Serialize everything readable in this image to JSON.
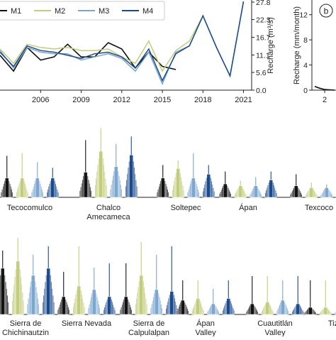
{
  "chart_data": [
    {
      "type": "line",
      "title": "",
      "xlabel": "",
      "ylabel": "Recharge (m³/s)",
      "x": [
        2003,
        2004,
        2005,
        2006,
        2007,
        2008,
        2009,
        2010,
        2011,
        2012,
        2013,
        2014,
        2015,
        2016,
        2017,
        2018,
        2019,
        2020,
        2021
      ],
      "xlim": [
        2003,
        2021.6
      ],
      "xticks": [
        "2006",
        "2009",
        "2012",
        "2015",
        "2018",
        "2021"
      ],
      "ylim": [
        0,
        27.8
      ],
      "yticks": [
        "0.0",
        "5.6",
        "11.1",
        "16.7",
        "22.3",
        "27.8"
      ],
      "legend_position": "top-left",
      "series": [
        {
          "name": "M1",
          "color": "#111111",
          "values": [
            11.0,
            6.0,
            13.5,
            9.5,
            10.5,
            14.5,
            10.5,
            10.5,
            15.0,
            13.0,
            7.0,
            12.0,
            7.5,
            6.5,
            null,
            null,
            null,
            null,
            null
          ]
        },
        {
          "name": "M2",
          "color": "#c2cc7a",
          "values": [
            13.0,
            8.5,
            14.5,
            13.5,
            13.0,
            13.5,
            12.5,
            12.5,
            13.0,
            10.5,
            8.5,
            15.5,
            6.0,
            12.5,
            15.5,
            23.5,
            13.5,
            4.5,
            28.0
          ]
        },
        {
          "name": "M3",
          "color": "#7aa6cf",
          "values": [
            12.5,
            7.0,
            13.5,
            12.0,
            11.5,
            11.5,
            9.5,
            10.5,
            11.5,
            10.0,
            6.0,
            12.0,
            2.0,
            12.0,
            14.0,
            23.5,
            13.5,
            4.5,
            28.0
          ]
        },
        {
          "name": "M4",
          "color": "#1a4a8c",
          "values": [
            12.0,
            7.5,
            14.0,
            12.5,
            12.0,
            11.0,
            10.0,
            11.5,
            12.0,
            10.5,
            7.0,
            13.0,
            3.0,
            11.5,
            14.0,
            23.5,
            13.5,
            4.5,
            28.0
          ]
        }
      ]
    },
    {
      "type": "line",
      "panel_letter": "b",
      "ylabel": "Recharge (mm/month)",
      "ylim": [
        0,
        14
      ],
      "yticks": [
        "0",
        "4",
        "8",
        "12"
      ],
      "xticks": [
        "2"
      ],
      "series": [
        {
          "name": "",
          "color": "#111111",
          "x": [
            0,
            1,
            2,
            4
          ],
          "values": [
            0.6,
            0.3,
            0.1,
            0.0
          ]
        }
      ]
    },
    {
      "type": "boxen",
      "title": "",
      "groups": [
        "Tecocomulco",
        "Chalco\nAmecameca",
        "Soltepec",
        "Ápan",
        "Texcoco"
      ],
      "series_colors": [
        "#111111",
        "#c2cc7a",
        "#7aa6cf",
        "#1a4a8c"
      ],
      "medians": [
        [
          1.0,
          1.0,
          1.0,
          1.0
        ],
        [
          1.3,
          2.4,
          1.6,
          2.2
        ],
        [
          1.0,
          1.5,
          1.0,
          1.2
        ],
        [
          0.7,
          0.6,
          0.6,
          0.9
        ],
        [
          0.6,
          0.5,
          0.5,
          0.6
        ]
      ],
      "maxima": [
        [
          4.5,
          4.8,
          3.8,
          3.2
        ],
        [
          6.2,
          7.5,
          5.8,
          6.6
        ],
        [
          3.5,
          4.0,
          4.8,
          3.5
        ],
        [
          2.8,
          1.8,
          2.2,
          2.8
        ],
        [
          2.5,
          1.6,
          1.4,
          1.8
        ]
      ]
    },
    {
      "type": "boxen",
      "title": "",
      "groups": [
        "Sierra de\nChichinautzin",
        "Sierra Nevada",
        "Sierra de\nCalpulalpan",
        "Ápan\nValley",
        "Cuautitlán\nValley",
        "Tiz"
      ],
      "series_colors": [
        "#111111",
        "#c2cc7a",
        "#7aa6cf",
        "#1a4a8c"
      ],
      "medians": [
        [
          2.6,
          3.0,
          2.2,
          2.6
        ],
        [
          1.0,
          1.6,
          1.4,
          1.0
        ],
        [
          1.0,
          2.2,
          1.4,
          1.3
        ],
        [
          0.8,
          0.9,
          0.6,
          0.9
        ],
        [
          0.6,
          0.7,
          0.8,
          0.6
        ],
        [
          0.4,
          0.4,
          0.4,
          0.4
        ]
      ],
      "maxima": [
        [
          7.5,
          9.0,
          7.0,
          8.0
        ],
        [
          5.0,
          8.0,
          5.5,
          6.0
        ],
        [
          6.0,
          8.5,
          7.0,
          8.0
        ],
        [
          4.0,
          4.0,
          3.0,
          4.0
        ],
        [
          4.5,
          4.5,
          4.0,
          4.5
        ],
        [
          4.0,
          4.0,
          4.0,
          4.0
        ]
      ]
    }
  ]
}
